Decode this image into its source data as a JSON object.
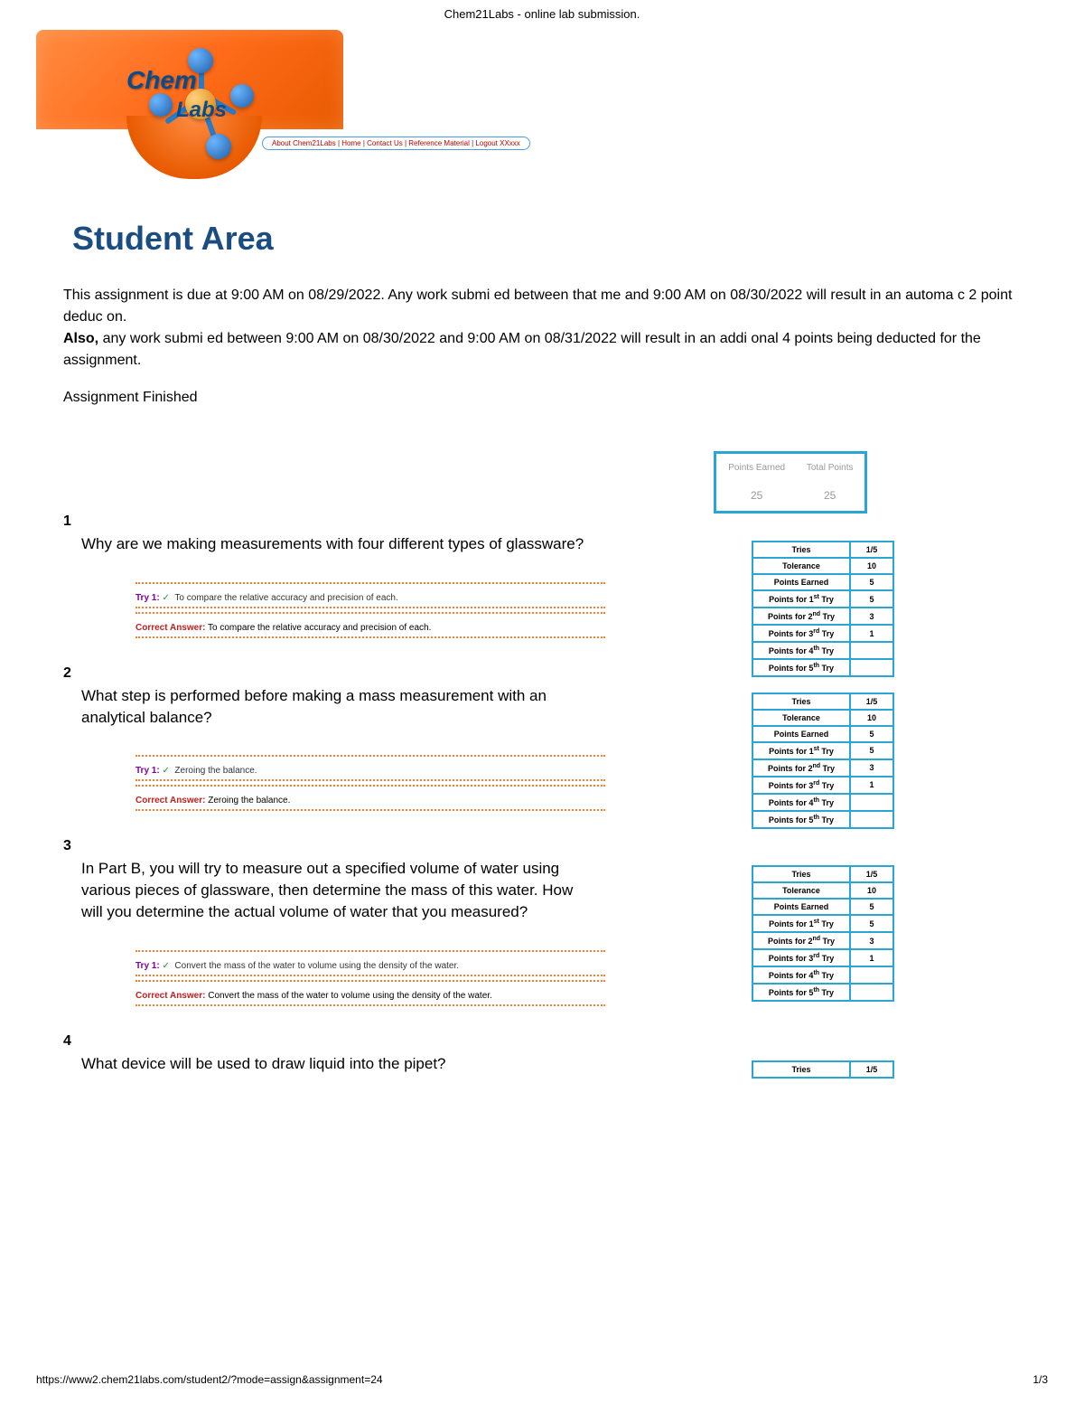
{
  "header": {
    "title": "Chem21Labs - online lab submission."
  },
  "logo": {
    "chem": "Chem",
    "labs": "Labs"
  },
  "nav": {
    "about": "About Chem21Labs",
    "home": "Home",
    "contact": "Contact Us",
    "reference": "Reference Material",
    "logout": "Logout XXxxx"
  },
  "page": {
    "title": "Student Area",
    "due_text": "This assignment is due at 9:00 AM on 08/29/2022. Any work submi ed between that me and 9:00 AM on 08/30/2022 will result in an automa c 2 point deduc on.",
    "also_text": "Also, any work submi ed between 9:00 AM on 08/30/2022 and 9:00 AM on 08/31/2022 will result in an addi onal 4 points being deducted for the assignment.",
    "status": "Assignment Finished"
  },
  "summary": {
    "earned_label": "Points Earned",
    "total_label": "Total Points",
    "earned": "25",
    "total": "25"
  },
  "score_labels": {
    "tries": "Tries",
    "tolerance": "Tolerance",
    "earned": "Points Earned",
    "p1": "Points for 1",
    "p2": "Points for 2",
    "p3": "Points for 3",
    "p4": "Points for 4",
    "p5": "Points for 5",
    "try_suffix": " Try",
    "s1": "st",
    "s2": "nd",
    "s3": "rd",
    "s4": "th",
    "s5": "th"
  },
  "questions": [
    {
      "num": "1",
      "text": "Why are we making measurements with four different types of glassware?",
      "try_label": "Try 1:",
      "try_text": "To compare the relative accuracy and precision of each.",
      "correct_label": "Correct Answer:",
      "correct_text": "To compare the relative accuracy and precision of each.",
      "scores": {
        "tries": "1/5",
        "tolerance": "10",
        "earned": "5",
        "p1": "5",
        "p2": "3",
        "p3": "1",
        "p4": "",
        "p5": ""
      }
    },
    {
      "num": "2",
      "text": "What step is performed before making a mass measurement with an analytical balance?",
      "try_label": "Try 1:",
      "try_text": "Zeroing the balance.",
      "correct_label": "Correct Answer:",
      "correct_text": "Zeroing the balance.",
      "scores": {
        "tries": "1/5",
        "tolerance": "10",
        "earned": "5",
        "p1": "5",
        "p2": "3",
        "p3": "1",
        "p4": "",
        "p5": ""
      }
    },
    {
      "num": "3",
      "text": "In Part B, you will try to measure out a specified volume of water using various pieces of glassware, then determine the mass of this water. How will you determine the actual volume of water that you measured?",
      "try_label": "Try 1:",
      "try_text": "Convert the mass of the water to volume using the density of the water.",
      "correct_label": "Correct Answer:",
      "correct_text": "Convert the mass of the water to volume using the density of the water.",
      "scores": {
        "tries": "1/5",
        "tolerance": "10",
        "earned": "5",
        "p1": "5",
        "p2": "3",
        "p3": "1",
        "p4": "",
        "p5": ""
      }
    },
    {
      "num": "4",
      "text": "What device will be used to draw liquid into the pipet?",
      "scores": {
        "tries": "1/5"
      }
    }
  ],
  "footer": {
    "url": "https://www2.chem21labs.com/student2/?mode=assign&assignment=24",
    "page": "1/3"
  }
}
